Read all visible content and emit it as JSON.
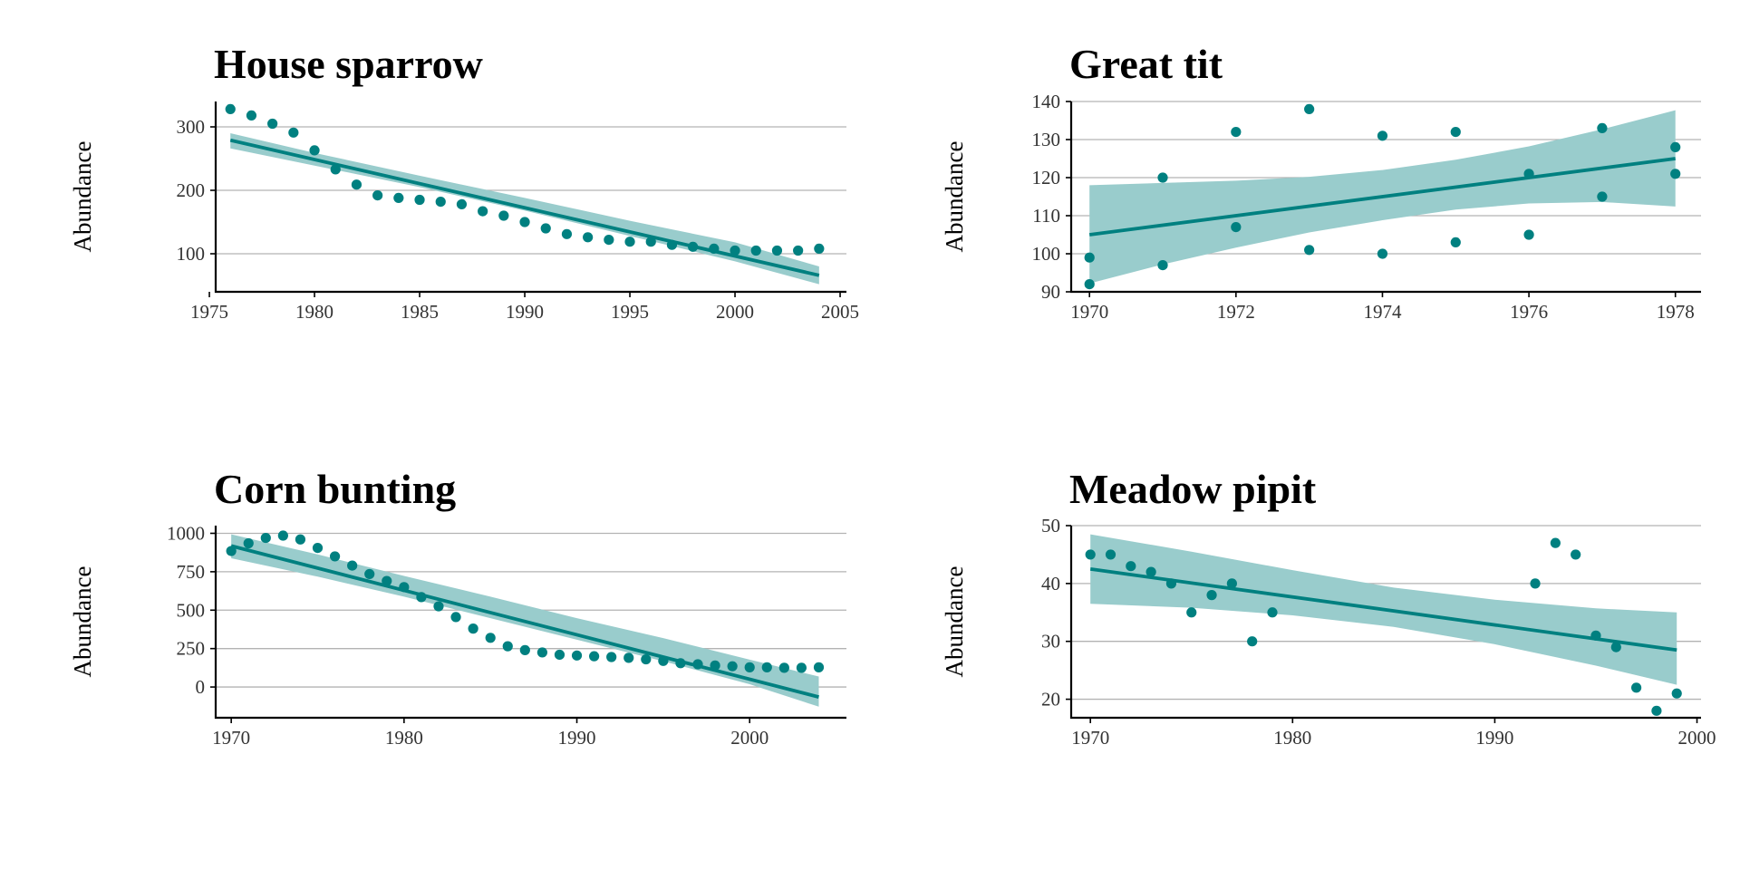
{
  "chart_data": [
    {
      "type": "scatter",
      "title": "House sparrow",
      "ylabel": "Abundance",
      "xlim": [
        1975.3,
        2005.3
      ],
      "ylim": [
        40,
        340
      ],
      "xticks": [
        1975,
        1980,
        1985,
        1990,
        1995,
        2000,
        2005
      ],
      "yticks": [
        100,
        200,
        300
      ],
      "grid": "horizontal",
      "colors": {
        "points": "#008080",
        "band": "#99cccc"
      },
      "points": {
        "x": [
          1976,
          1977,
          1978,
          1979,
          1980,
          1981,
          1982,
          1983,
          1984,
          1985,
          1986,
          1987,
          1988,
          1989,
          1990,
          1991,
          1992,
          1993,
          1994,
          1995,
          1996,
          1997,
          1998,
          1999,
          2000,
          2001,
          2002,
          2003,
          2004
        ],
        "y": [
          328,
          318,
          305,
          291,
          263,
          233,
          209,
          192,
          188,
          185,
          182,
          178,
          167,
          160,
          150,
          140,
          131,
          126,
          122,
          119,
          119,
          114,
          111,
          108,
          105,
          105,
          105,
          105,
          108
        ]
      },
      "fit": {
        "x": [
          1976,
          2004
        ],
        "y": [
          279,
          66
        ]
      },
      "band": {
        "x": [
          1976,
          1980,
          1985,
          1990,
          1995,
          2000,
          2004
        ],
        "upper": [
          290,
          259,
          223,
          188,
          152,
          118,
          80
        ],
        "lower": [
          266,
          239,
          205,
          168,
          128,
          88,
          52
        ]
      }
    },
    {
      "type": "scatter",
      "title": "Great tit",
      "ylabel": "Abundance",
      "xlim": [
        1969.75,
        1978.35
      ],
      "ylim": [
        90,
        140
      ],
      "xticks": [
        1970,
        1972,
        1974,
        1976,
        1978
      ],
      "yticks": [
        90,
        100,
        110,
        120,
        130,
        140
      ],
      "grid": "horizontal",
      "colors": {
        "points": "#008080",
        "band": "#99cccc"
      },
      "points": {
        "x": [
          1970,
          1970,
          1971,
          1971,
          1972,
          1972,
          1973,
          1973,
          1974,
          1974,
          1975,
          1975,
          1976,
          1976,
          1977,
          1977,
          1978,
          1978
        ],
        "y": [
          92,
          99,
          97,
          120,
          132,
          107,
          138,
          101,
          131,
          100,
          132,
          103,
          121,
          105,
          133,
          115,
          128,
          121
        ]
      },
      "fit": {
        "x": [
          1970,
          1978
        ],
        "y": [
          105,
          125
        ]
      },
      "band": {
        "x": [
          1970,
          1971,
          1972,
          1973,
          1974,
          1975,
          1976,
          1977,
          1978
        ],
        "upper": [
          118,
          118.6,
          119.2,
          120.2,
          122,
          124.7,
          128.2,
          132.7,
          137.7
        ],
        "lower": [
          92.2,
          97.2,
          101.6,
          105.6,
          108.8,
          111.6,
          113.2,
          113.6,
          112.4
        ]
      }
    },
    {
      "type": "scatter",
      "title": "Corn bunting",
      "ylabel": "Abundance",
      "xlim": [
        1969.1,
        2005.6
      ],
      "ylim": [
        -200,
        1050
      ],
      "xticks": [
        1970,
        1980,
        1990,
        2000
      ],
      "yticks": [
        0,
        250,
        500,
        750,
        1000
      ],
      "grid": "horizontal",
      "colors": {
        "points": "#008080",
        "band": "#99cccc"
      },
      "points": {
        "x": [
          1970,
          1971,
          1972,
          1973,
          1974,
          1975,
          1976,
          1977,
          1978,
          1979,
          1980,
          1981,
          1982,
          1983,
          1984,
          1985,
          1986,
          1987,
          1988,
          1989,
          1990,
          1991,
          1992,
          1993,
          1994,
          1995,
          1996,
          1997,
          1998,
          1999,
          2000,
          2001,
          2002,
          2003,
          2004
        ],
        "y": [
          885,
          935,
          970,
          985,
          960,
          905,
          850,
          790,
          735,
          690,
          650,
          585,
          525,
          455,
          380,
          320,
          265,
          240,
          225,
          210,
          205,
          200,
          195,
          190,
          180,
          170,
          155,
          148,
          140,
          135,
          128,
          128,
          125,
          125,
          128
        ]
      },
      "fit": {
        "x": [
          1970,
          2004
        ],
        "y": [
          918,
          -65
        ]
      },
      "band": {
        "x": [
          1970,
          1975,
          1980,
          1985,
          1990,
          1995,
          2000,
          2004
        ],
        "upper": [
          993,
          863,
          723,
          588,
          448,
          318,
          178,
          68
        ],
        "lower": [
          838,
          718,
          588,
          448,
          308,
          168,
          18,
          -128
        ]
      }
    },
    {
      "type": "scatter",
      "title": "Meadow pipit",
      "ylabel": "Abundance",
      "xlim": [
        1969.05,
        2000.2
      ],
      "ylim": [
        16.8,
        50
      ],
      "xticks": [
        1970,
        1980,
        1990,
        2000
      ],
      "yticks": [
        20,
        30,
        40,
        50
      ],
      "grid": "horizontal",
      "colors": {
        "points": "#008080",
        "band": "#99cccc"
      },
      "points": {
        "x": [
          1970,
          1971,
          1972,
          1973,
          1974,
          1975,
          1976,
          1977,
          1978,
          1979,
          1992,
          1993,
          1994,
          1995,
          1996,
          1997,
          1998,
          1999
        ],
        "y": [
          45,
          45,
          43,
          42,
          40,
          35,
          38,
          40,
          30,
          35,
          40,
          47,
          45,
          31,
          29,
          22,
          18,
          21
        ]
      },
      "fit": {
        "x": [
          1970,
          1999
        ],
        "y": [
          42.5,
          28.5
        ]
      },
      "band": {
        "x": [
          1970,
          1975,
          1980,
          1985,
          1990,
          1995,
          1999
        ],
        "upper": [
          48.5,
          45.5,
          42.3,
          39.3,
          37.2,
          35.7,
          35
        ],
        "lower": [
          36.5,
          35.8,
          34.5,
          32.5,
          29.5,
          25.8,
          22.5
        ]
      }
    }
  ]
}
